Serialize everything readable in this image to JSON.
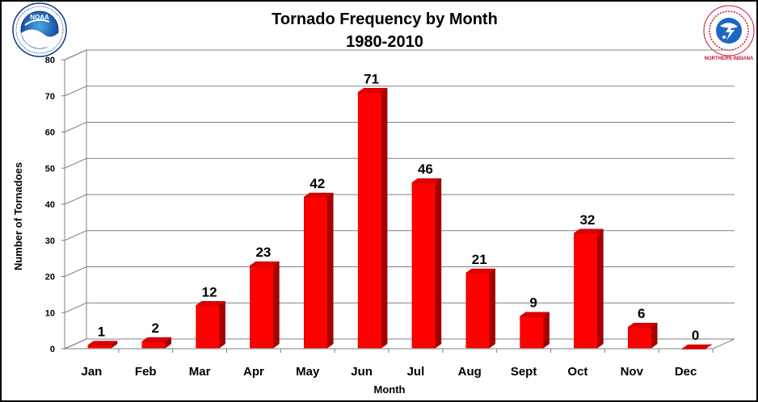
{
  "chart_data": {
    "type": "bar",
    "title": "Tornado Frequency by Month",
    "subtitle": "1980-2010",
    "xlabel": "Month",
    "ylabel": "Number of Tornadoes",
    "categories": [
      "Jan",
      "Feb",
      "Mar",
      "Apr",
      "May",
      "Jun",
      "Jul",
      "Aug",
      "Sept",
      "Oct",
      "Nov",
      "Dec"
    ],
    "values": [
      1,
      2,
      12,
      23,
      42,
      71,
      46,
      21,
      9,
      32,
      6,
      0
    ],
    "ylim": [
      0,
      80
    ],
    "yticks": [
      0,
      10,
      20,
      30,
      40,
      50,
      60,
      70,
      80
    ],
    "grid": true,
    "legend": "none",
    "bar_color": "#ff0000",
    "bar_style": "3d",
    "data_labels": true
  },
  "logos": {
    "left": {
      "icon": "noaa-logo-icon",
      "text": "NOAA",
      "ring_text": "NATIONAL OCEANIC AND ATMOSPHERIC ADMINISTRATION · U.S. DEPARTMENT OF COMMERCE"
    },
    "right": {
      "icon": "nws-logo-icon",
      "ring_text": "NATIONAL WEATHER SERVICE",
      "caption": "NORTHERN INDIANA"
    }
  }
}
